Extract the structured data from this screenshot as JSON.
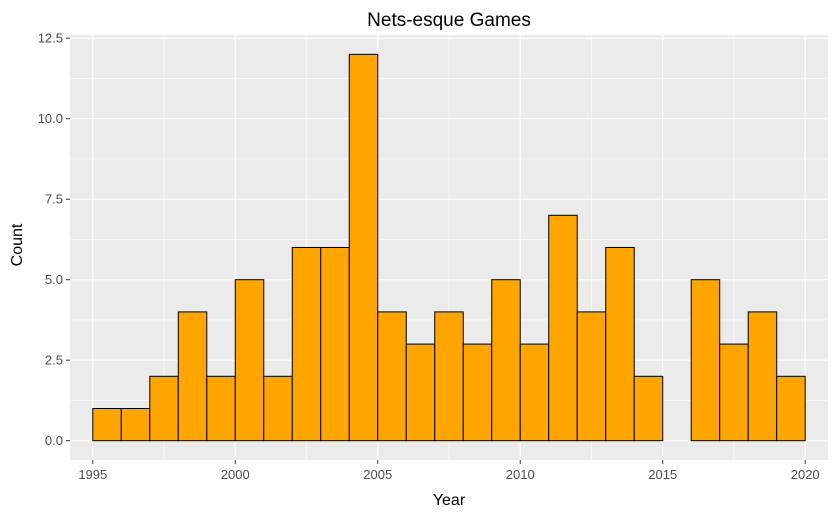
{
  "chart_data": {
    "type": "bar",
    "title": "Nets-esque Games",
    "xlabel": "Year",
    "ylabel": "Count",
    "bin_width": 1,
    "bins_start": [
      1995,
      1996,
      1997,
      1998,
      1999,
      2000,
      2001,
      2002,
      2003,
      2004,
      2005,
      2006,
      2007,
      2008,
      2009,
      2010,
      2011,
      2012,
      2013,
      2014,
      2015,
      2016,
      2017,
      2018,
      2019
    ],
    "values": [
      1,
      1,
      2,
      4,
      2,
      5,
      2,
      6,
      6,
      12,
      4,
      3,
      4,
      3,
      5,
      3,
      7,
      4,
      6,
      2,
      0,
      5,
      3,
      4,
      2
    ],
    "xlim": [
      1994.2,
      2020.8
    ],
    "ylim": [
      -0.6,
      12.6
    ],
    "x_ticks": [
      1995,
      2000,
      2005,
      2010,
      2015,
      2020
    ],
    "x_tick_labels": [
      "1995",
      "2000",
      "2005",
      "2010",
      "2015",
      "2020"
    ],
    "y_ticks": [
      0,
      2.5,
      5,
      7.5,
      10,
      12.5
    ],
    "y_tick_labels": [
      "0.0",
      "2.5",
      "5.0",
      "7.5",
      "10.0",
      "12.5"
    ],
    "grid": true,
    "bar_color": "#FFA500",
    "bar_outline": "#000000",
    "panel_background": "#EBEBEB",
    "grid_color": "#FFFFFF"
  }
}
